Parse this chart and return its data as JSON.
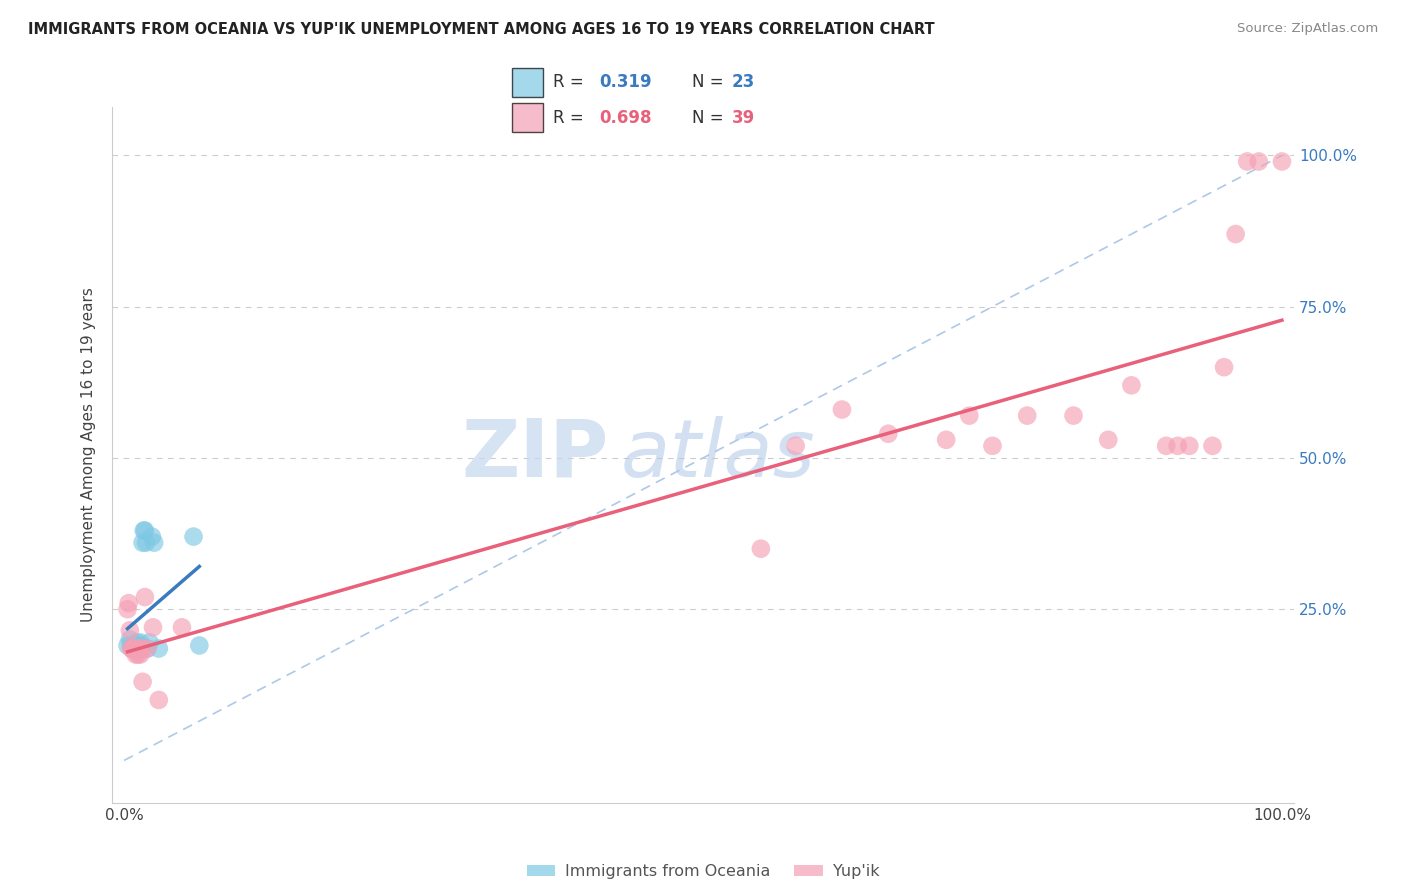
{
  "title": "IMMIGRANTS FROM OCEANIA VS YUP'IK UNEMPLOYMENT AMONG AGES 16 TO 19 YEARS CORRELATION CHART",
  "source": "Source: ZipAtlas.com",
  "ylabel": "Unemployment Among Ages 16 to 19 years",
  "xlim": [
    -0.01,
    1.01
  ],
  "ylim": [
    -0.07,
    1.08
  ],
  "color_blue": "#7ec8e3",
  "color_pink": "#f4a0b5",
  "color_line_blue": "#3a7bbf",
  "color_line_pink": "#e8607a",
  "color_diagonal": "#adc9e8",
  "watermark_zip": "ZIP",
  "watermark_atlas": "atlas",
  "blue_scatter_x": [
    0.003,
    0.005,
    0.006,
    0.007,
    0.008,
    0.009,
    0.01,
    0.011,
    0.012,
    0.013,
    0.014,
    0.015,
    0.016,
    0.017,
    0.018,
    0.019,
    0.02,
    0.022,
    0.024,
    0.026,
    0.03,
    0.06,
    0.065
  ],
  "blue_scatter_y": [
    0.19,
    0.2,
    0.19,
    0.185,
    0.185,
    0.19,
    0.185,
    0.195,
    0.185,
    0.19,
    0.195,
    0.185,
    0.36,
    0.38,
    0.38,
    0.36,
    0.185,
    0.195,
    0.37,
    0.36,
    0.185,
    0.37,
    0.19
  ],
  "pink_scatter_x": [
    0.003,
    0.004,
    0.005,
    0.006,
    0.007,
    0.008,
    0.009,
    0.01,
    0.011,
    0.012,
    0.013,
    0.014,
    0.015,
    0.016,
    0.018,
    0.02,
    0.025,
    0.03,
    0.05,
    0.55,
    0.58,
    0.62,
    0.66,
    0.71,
    0.73,
    0.75,
    0.78,
    0.82,
    0.85,
    0.87,
    0.9,
    0.91,
    0.92,
    0.94,
    0.95,
    0.96,
    0.97,
    0.98,
    1.0
  ],
  "pink_scatter_y": [
    0.25,
    0.26,
    0.215,
    0.185,
    0.185,
    0.185,
    0.185,
    0.175,
    0.18,
    0.175,
    0.185,
    0.175,
    0.185,
    0.13,
    0.27,
    0.185,
    0.22,
    0.1,
    0.22,
    0.35,
    0.52,
    0.58,
    0.54,
    0.53,
    0.57,
    0.52,
    0.57,
    0.57,
    0.53,
    0.62,
    0.52,
    0.52,
    0.52,
    0.52,
    0.65,
    0.87,
    0.99,
    0.99,
    0.99
  ]
}
